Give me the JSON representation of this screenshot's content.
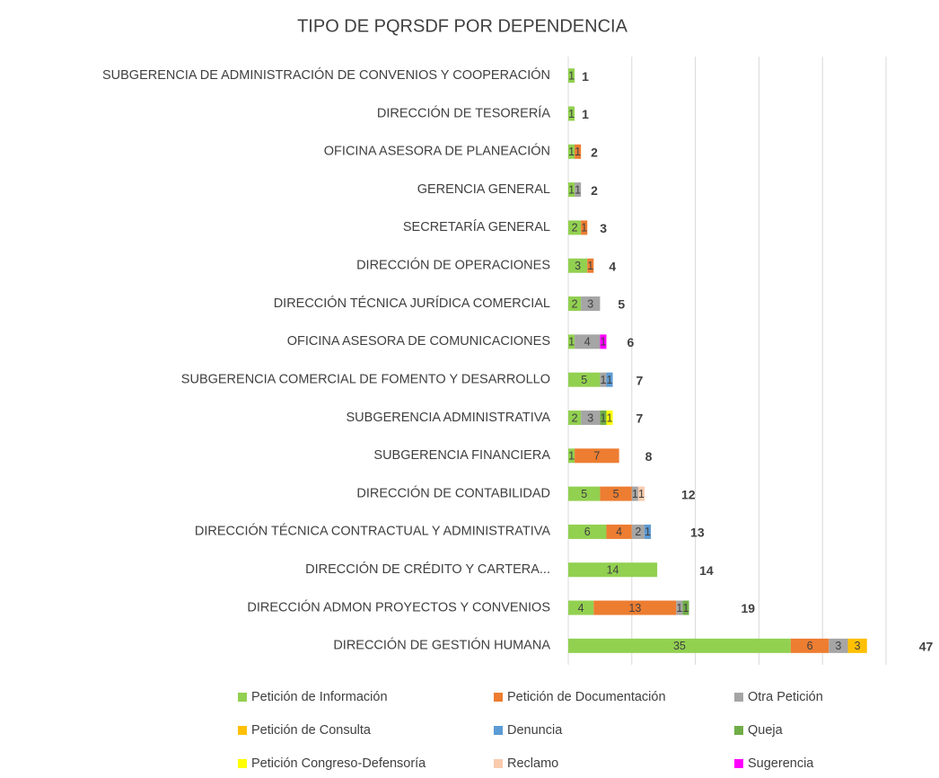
{
  "chart_data": {
    "type": "stacked_barh",
    "title": "TIPO DE PQRSDF POR DEPENDENCIA",
    "categories": [
      "SUBGERENCIA DE ADMINISTRACIÓN DE CONVENIOS Y COOPERACIÓN",
      "DIRECCIÓN DE TESORERÍA",
      "OFICINA ASESORA DE PLANEACIÓN",
      "GERENCIA GENERAL",
      "SECRETARÍA GENERAL",
      "DIRECCIÓN DE OPERACIONES",
      "DIRECCIÓN TÉCNICA JURÍDICA COMERCIAL",
      "OFICINA ASESORA DE COMUNICACIONES",
      "SUBGERENCIA COMERCIAL DE FOMENTO Y DESARROLLO",
      "SUBGERENCIA ADMINISTRATIVA",
      "SUBGERENCIA FINANCIERA",
      "DIRECCIÓN DE CONTABILIDAD",
      "DIRECCIÓN TÉCNICA CONTRACTUAL Y ADMINISTRATIVA",
      "DIRECCIÓN DE CRÉDITO Y CARTERA...",
      "DIRECCIÓN ADMON PROYECTOS Y CONVENIOS",
      "DIRECCIÓN DE GESTIÓN HUMANA"
    ],
    "series": [
      {
        "name": "Petición de Información",
        "color": "#92d050",
        "values": [
          1,
          1,
          1,
          1,
          2,
          3,
          2,
          1,
          5,
          2,
          1,
          5,
          6,
          14,
          4,
          35
        ]
      },
      {
        "name": "Petición de Documentación",
        "color": "#ed7d31",
        "values": [
          null,
          null,
          1,
          null,
          1,
          1,
          null,
          null,
          null,
          null,
          7,
          5,
          4,
          null,
          13,
          6
        ]
      },
      {
        "name": "Otra Petición",
        "color": "#a5a5a5",
        "values": [
          null,
          null,
          null,
          1,
          null,
          null,
          3,
          4,
          1,
          3,
          null,
          1,
          2,
          null,
          1,
          3
        ]
      },
      {
        "name": "Petición de Consulta",
        "color": "#ffc000",
        "values": [
          null,
          null,
          null,
          null,
          null,
          null,
          null,
          null,
          null,
          null,
          null,
          null,
          null,
          null,
          null,
          3
        ]
      },
      {
        "name": "Denuncia",
        "color": "#5b9bd5",
        "values": [
          null,
          null,
          null,
          null,
          null,
          null,
          null,
          null,
          1,
          null,
          null,
          null,
          1,
          null,
          null,
          null
        ]
      },
      {
        "name": "Queja",
        "color": "#70ad47",
        "values": [
          null,
          null,
          null,
          null,
          null,
          null,
          null,
          null,
          null,
          1,
          null,
          null,
          null,
          null,
          1,
          null
        ]
      },
      {
        "name": "Petición Congreso-Defensoría",
        "color": "#ffff00",
        "values": [
          null,
          null,
          null,
          null,
          null,
          null,
          null,
          null,
          null,
          1,
          null,
          null,
          null,
          null,
          null,
          null
        ]
      },
      {
        "name": "Reclamo",
        "color": "#f8cbad",
        "values": [
          null,
          null,
          null,
          null,
          null,
          null,
          null,
          null,
          null,
          null,
          null,
          1,
          null,
          null,
          null,
          null
        ]
      },
      {
        "name": "Sugerencia",
        "color": "#ff00ff",
        "values": [
          null,
          null,
          null,
          null,
          null,
          null,
          null,
          1,
          null,
          null,
          null,
          null,
          null,
          null,
          null,
          null
        ]
      }
    ],
    "totals": [
      1,
      1,
      2,
      2,
      3,
      4,
      5,
      6,
      7,
      7,
      8,
      12,
      13,
      14,
      19,
      47
    ],
    "xlim": [
      0,
      50
    ],
    "xticks": [
      0,
      10,
      20,
      30,
      40,
      50
    ],
    "grid": true
  }
}
